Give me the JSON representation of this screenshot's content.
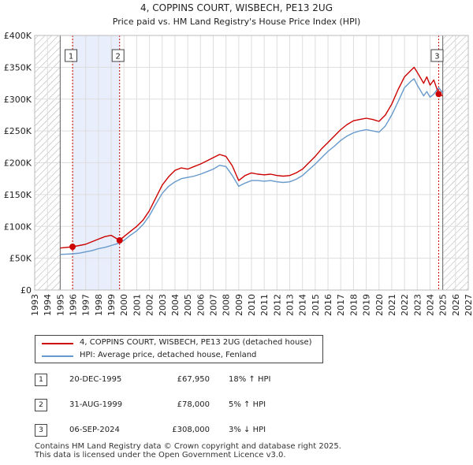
{
  "chart_data": {
    "type": "line",
    "title": "4, COPPINS COURT, WISBECH, PE13 2UG",
    "subtitle": "Price paid vs. HM Land Registry's House Price Index (HPI)",
    "xlim": [
      1993,
      2027
    ],
    "ylim": [
      0,
      400000
    ],
    "x_ticks": [
      "1993",
      "1994",
      "1995",
      "1996",
      "1997",
      "1998",
      "1999",
      "2000",
      "2001",
      "2002",
      "2003",
      "2004",
      "2005",
      "2006",
      "2007",
      "2008",
      "2009",
      "2010",
      "2011",
      "2012",
      "2013",
      "2014",
      "2015",
      "2016",
      "2017",
      "2018",
      "2019",
      "2020",
      "2021",
      "2022",
      "2023",
      "2024",
      "2025",
      "2026",
      "2027"
    ],
    "y_ticks": [
      {
        "value": 0,
        "label": "£0"
      },
      {
        "value": 50000,
        "label": "£50K"
      },
      {
        "value": 100000,
        "label": "£100K"
      },
      {
        "value": 150000,
        "label": "£150K"
      },
      {
        "value": 200000,
        "label": "£200K"
      },
      {
        "value": 250000,
        "label": "£250K"
      },
      {
        "value": 300000,
        "label": "£300K"
      },
      {
        "value": 350000,
        "label": "£350K"
      },
      {
        "value": 400000,
        "label": "£400K"
      }
    ],
    "data_start": 1995.0,
    "data_end": 2025.0,
    "shade_band": [
      1995.97,
      1999.66
    ],
    "series": [
      {
        "name": "4, COPPINS COURT, WISBECH, PE13 2UG (detached house)",
        "color": "#cc0000",
        "x": [
          1995.0,
          1995.5,
          1995.97,
          1996.5,
          1997.0,
          1997.5,
          1998.0,
          1998.5,
          1999.0,
          1999.66,
          2000.0,
          2000.5,
          2001.0,
          2001.5,
          2002.0,
          2002.5,
          2003.0,
          2003.5,
          2004.0,
          2004.5,
          2005.0,
          2005.5,
          2006.0,
          2006.5,
          2007.0,
          2007.5,
          2008.0,
          2008.5,
          2009.0,
          2009.5,
          2010.0,
          2010.5,
          2011.0,
          2011.5,
          2012.0,
          2012.5,
          2013.0,
          2013.5,
          2014.0,
          2014.5,
          2015.0,
          2015.5,
          2016.0,
          2016.5,
          2017.0,
          2017.5,
          2018.0,
          2018.5,
          2019.0,
          2019.5,
          2020.0,
          2020.5,
          2021.0,
          2021.5,
          2022.0,
          2022.5,
          2022.75,
          2023.0,
          2023.5,
          2023.75,
          2024.0,
          2024.3,
          2024.68,
          2025.0
        ],
        "y": [
          66000,
          67000,
          67950,
          70000,
          72000,
          76000,
          80000,
          84000,
          86000,
          78000,
          84000,
          92000,
          100000,
          110000,
          125000,
          145000,
          165000,
          178000,
          188000,
          192000,
          190000,
          194000,
          198000,
          203000,
          208000,
          213000,
          210000,
          195000,
          172000,
          180000,
          184000,
          182000,
          181000,
          182000,
          180000,
          179000,
          180000,
          184000,
          190000,
          200000,
          210000,
          222000,
          232000,
          242000,
          252000,
          260000,
          266000,
          268000,
          270000,
          268000,
          265000,
          275000,
          292000,
          315000,
          335000,
          345000,
          350000,
          342000,
          325000,
          335000,
          322000,
          330000,
          308000,
          305000
        ]
      },
      {
        "name": "HPI: Average price, detached house, Fenland",
        "color": "#6699cc",
        "x": [
          1995.0,
          1995.5,
          1996.0,
          1996.5,
          1997.0,
          1997.5,
          1998.0,
          1998.5,
          1999.0,
          1999.5,
          2000.0,
          2000.5,
          2001.0,
          2001.5,
          2002.0,
          2002.5,
          2003.0,
          2003.5,
          2004.0,
          2004.5,
          2005.0,
          2005.5,
          2006.0,
          2006.5,
          2007.0,
          2007.5,
          2008.0,
          2008.5,
          2009.0,
          2009.5,
          2010.0,
          2010.5,
          2011.0,
          2011.5,
          2012.0,
          2012.5,
          2013.0,
          2013.5,
          2014.0,
          2014.5,
          2015.0,
          2015.5,
          2016.0,
          2016.5,
          2017.0,
          2017.5,
          2018.0,
          2018.5,
          2019.0,
          2019.5,
          2020.0,
          2020.5,
          2021.0,
          2021.5,
          2022.0,
          2022.5,
          2022.75,
          2023.0,
          2023.5,
          2023.75,
          2024.0,
          2024.3,
          2024.68,
          2025.0
        ],
        "y": [
          56000,
          56500,
          57000,
          58000,
          60000,
          62000,
          65000,
          67000,
          70000,
          73000,
          78000,
          86000,
          93000,
          103000,
          117000,
          135000,
          152000,
          163000,
          170000,
          175000,
          177000,
          179000,
          182000,
          186000,
          190000,
          196000,
          194000,
          180000,
          163000,
          168000,
          172000,
          172000,
          171000,
          172000,
          170000,
          169000,
          170000,
          174000,
          180000,
          189000,
          198000,
          208000,
          218000,
          226000,
          235000,
          242000,
          247000,
          250000,
          252000,
          250000,
          248000,
          258000,
          275000,
          296000,
          318000,
          328000,
          332000,
          322000,
          305000,
          312000,
          303000,
          308000,
          318000,
          310000
        ]
      }
    ],
    "sales": [
      {
        "id": "1",
        "x": 1995.97,
        "value": 67950
      },
      {
        "id": "2",
        "x": 1999.66,
        "value": 78000
      },
      {
        "id": "3",
        "x": 2024.68,
        "value": 308000
      }
    ]
  },
  "legend": {
    "price_paid_label": "4, COPPINS COURT, WISBECH, PE13 2UG (detached house)",
    "hpi_label": "HPI: Average price, detached house, Fenland"
  },
  "colors": {
    "price_line": "#cc0000",
    "hpi_line": "#6699cc",
    "shade": "#e8eefb",
    "hatch": "#aaaaaa",
    "grid": "#dddddd"
  },
  "transactions": [
    {
      "num": "1",
      "date": "20-DEC-1995",
      "price": "£67,950",
      "hpi": "18% ↑ HPI"
    },
    {
      "num": "2",
      "date": "31-AUG-1999",
      "price": "£78,000",
      "hpi": "5% ↑ HPI"
    },
    {
      "num": "3",
      "date": "06-SEP-2024",
      "price": "£308,000",
      "hpi": "3% ↓ HPI"
    }
  ],
  "footer": {
    "line1": "Contains HM Land Registry data © Crown copyright and database right 2025.",
    "line2": "This data is licensed under the Open Government Licence v3.0."
  }
}
